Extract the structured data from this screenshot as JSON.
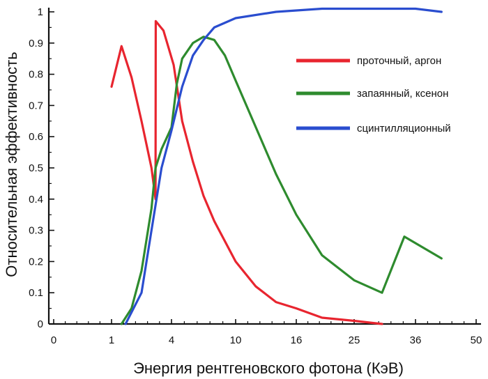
{
  "chart_data": {
    "type": "line",
    "xlabel": "Энергия рентгеновского фотона (КэВ)",
    "ylabel": "Относительная эффективность",
    "xticks": [
      "0",
      "1",
      "4",
      "10",
      "16",
      "25",
      "36",
      "50"
    ],
    "yticks": [
      "0",
      "0.1",
      "0.2",
      "0.3",
      "0.4",
      "0.5",
      "0.6",
      "0.7",
      "0.8",
      "0.9",
      "1"
    ],
    "ylim": [
      0,
      1
    ],
    "grid": false,
    "legend_position": "right",
    "series": [
      {
        "name": "проточный, аргон",
        "color": "#e8252f",
        "points": [
          [
            1.0,
            0.76
          ],
          [
            1.5,
            0.89
          ],
          [
            2.0,
            0.79
          ],
          [
            2.5,
            0.65
          ],
          [
            3.0,
            0.5
          ],
          [
            3.2,
            0.4
          ],
          [
            3.21,
            0.97
          ],
          [
            3.6,
            0.94
          ],
          [
            4.2,
            0.83
          ],
          [
            5.0,
            0.65
          ],
          [
            6.0,
            0.52
          ],
          [
            7.0,
            0.41
          ],
          [
            8.0,
            0.33
          ],
          [
            10.0,
            0.2
          ],
          [
            12.0,
            0.12
          ],
          [
            14.0,
            0.07
          ],
          [
            16.0,
            0.05
          ],
          [
            20.0,
            0.02
          ],
          [
            25.0,
            0.01
          ],
          [
            30.0,
            0.0
          ]
        ]
      },
      {
        "name": "запаянный, ксенон",
        "color": "#2e8b2e",
        "points": [
          [
            1.5,
            0.0
          ],
          [
            2.0,
            0.05
          ],
          [
            2.5,
            0.17
          ],
          [
            3.0,
            0.37
          ],
          [
            3.2,
            0.5
          ],
          [
            3.5,
            0.56
          ],
          [
            4.0,
            0.63
          ],
          [
            4.5,
            0.77
          ],
          [
            5.0,
            0.85
          ],
          [
            6.0,
            0.9
          ],
          [
            7.0,
            0.92
          ],
          [
            8.0,
            0.91
          ],
          [
            9.0,
            0.86
          ],
          [
            10.0,
            0.78
          ],
          [
            12.0,
            0.63
          ],
          [
            14.0,
            0.48
          ],
          [
            16.0,
            0.35
          ],
          [
            20.0,
            0.22
          ],
          [
            25.0,
            0.14
          ],
          [
            30.0,
            0.1
          ],
          [
            34.0,
            0.28
          ],
          [
            42.0,
            0.21
          ]
        ]
      },
      {
        "name": "сцинтилляционный",
        "color": "#2a4dcf",
        "points": [
          [
            1.7,
            0.0
          ],
          [
            2.5,
            0.1
          ],
          [
            3.0,
            0.3
          ],
          [
            3.5,
            0.5
          ],
          [
            4.0,
            0.62
          ],
          [
            5.0,
            0.76
          ],
          [
            6.0,
            0.86
          ],
          [
            7.0,
            0.91
          ],
          [
            8.0,
            0.95
          ],
          [
            10.0,
            0.98
          ],
          [
            14.0,
            1.0
          ],
          [
            20.0,
            1.01
          ],
          [
            25.0,
            1.01
          ],
          [
            30.0,
            1.01
          ],
          [
            36.0,
            1.01
          ],
          [
            42.0,
            1.0
          ]
        ]
      }
    ]
  }
}
